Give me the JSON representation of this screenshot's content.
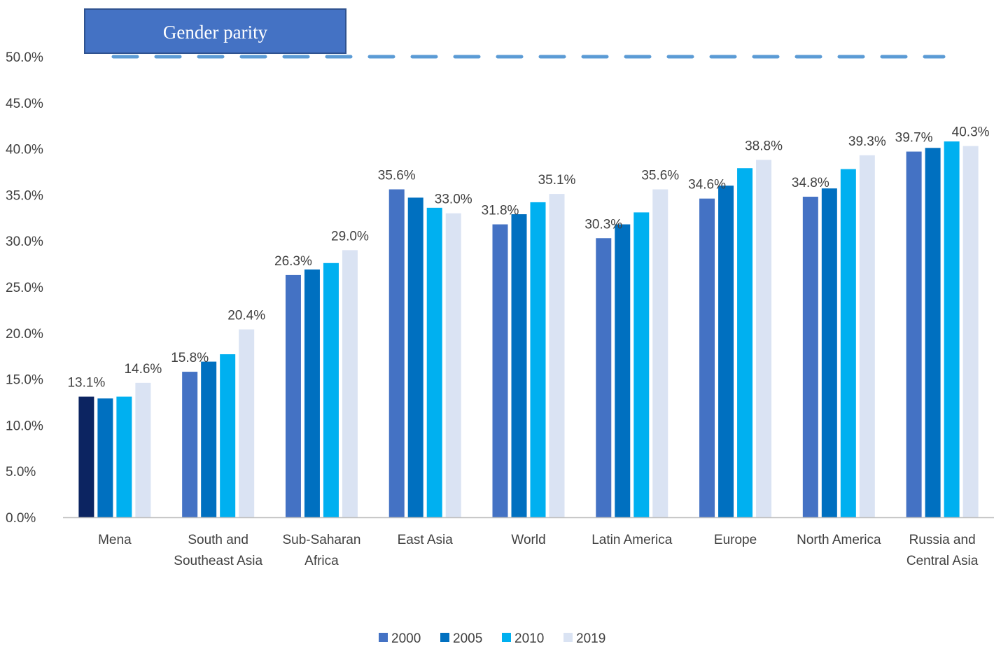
{
  "chart_data": {
    "type": "bar",
    "categories": [
      [
        "Mena"
      ],
      [
        "South and",
        "Southeast Asia"
      ],
      [
        "Sub-Saharan",
        "Africa"
      ],
      [
        "East Asia"
      ],
      [
        "World"
      ],
      [
        "Latin America"
      ],
      [
        "Europe"
      ],
      [
        "North America"
      ],
      [
        "Russia and",
        "Central Asia"
      ]
    ],
    "series": [
      {
        "name": "2000",
        "color": "#4472C4",
        "values": [
          13.1,
          15.8,
          26.3,
          35.6,
          31.8,
          30.3,
          34.6,
          34.8,
          39.7
        ]
      },
      {
        "name": "2005",
        "color": "#0070C0",
        "values": [
          12.9,
          16.9,
          26.9,
          34.7,
          32.9,
          31.8,
          36.0,
          35.7,
          40.1
        ]
      },
      {
        "name": "2010",
        "color": "#00B0F0",
        "values": [
          13.1,
          17.7,
          27.6,
          33.6,
          34.2,
          33.1,
          37.9,
          37.8,
          40.8
        ]
      },
      {
        "name": "2019",
        "color": "#DAE3F3",
        "values": [
          14.6,
          20.4,
          29.0,
          33.0,
          35.1,
          35.6,
          38.8,
          39.3,
          40.3
        ]
      }
    ],
    "highlight": {
      "category_index": 0,
      "series_index": 0,
      "color": "#0C2461"
    },
    "data_labels": [
      {
        "category_index": 0,
        "series_index": 0,
        "text": "13.1%"
      },
      {
        "category_index": 0,
        "series_index": 3,
        "text": "14.6%"
      },
      {
        "category_index": 1,
        "series_index": 0,
        "text": "15.8%"
      },
      {
        "category_index": 1,
        "series_index": 3,
        "text": "20.4%"
      },
      {
        "category_index": 2,
        "series_index": 0,
        "text": "26.3%"
      },
      {
        "category_index": 2,
        "series_index": 3,
        "text": "29.0%"
      },
      {
        "category_index": 3,
        "series_index": 0,
        "text": "35.6%"
      },
      {
        "category_index": 3,
        "series_index": 3,
        "text": "33.0%"
      },
      {
        "category_index": 4,
        "series_index": 0,
        "text": "31.8%"
      },
      {
        "category_index": 4,
        "series_index": 3,
        "text": "35.1%"
      },
      {
        "category_index": 5,
        "series_index": 0,
        "text": "30.3%"
      },
      {
        "category_index": 5,
        "series_index": 3,
        "text": "35.6%"
      },
      {
        "category_index": 6,
        "series_index": 0,
        "text": "34.6%"
      },
      {
        "category_index": 6,
        "series_index": 3,
        "text": "38.8%"
      },
      {
        "category_index": 7,
        "series_index": 0,
        "text": "34.8%"
      },
      {
        "category_index": 7,
        "series_index": 3,
        "text": "39.3%"
      },
      {
        "category_index": 8,
        "series_index": 0,
        "text": "39.7%"
      },
      {
        "category_index": 8,
        "series_index": 3,
        "text": "40.3%"
      }
    ],
    "yticks": [
      "0.0%",
      "5.0%",
      "10.0%",
      "15.0%",
      "20.0%",
      "25.0%",
      "30.0%",
      "35.0%",
      "40.0%",
      "45.0%",
      "50.0%"
    ],
    "ylim": [
      0,
      50
    ],
    "grid": false,
    "legend_position": "bottom",
    "reference_line": {
      "value": 50,
      "label": "Gender parity",
      "color": "#5B9BD5",
      "style": "dashed",
      "label_box_color": "#4472C4"
    }
  }
}
